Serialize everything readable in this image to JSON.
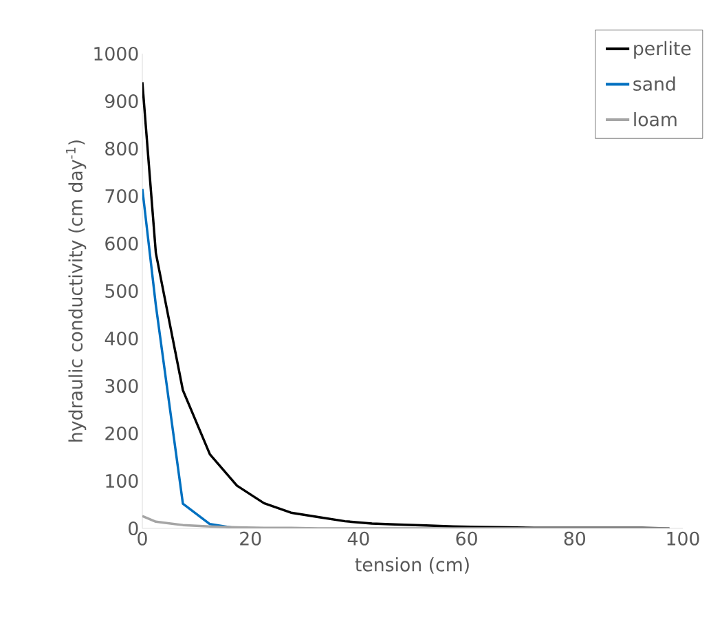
{
  "chart_data": {
    "type": "line",
    "xlabel": "tension (cm)",
    "ylabel": "hydraulic conductivity (cm day$^{-1}$)",
    "x": [
      0,
      2.5,
      7.5,
      12.5,
      17.5,
      22.5,
      27.5,
      32.5,
      37.5,
      42.5,
      47.5,
      52.5,
      57.5,
      62.5,
      67.5,
      72.5,
      77.5,
      82.5,
      87.5,
      92.5,
      97.5
    ],
    "series": [
      {
        "name": "perlite",
        "color": "#000000",
        "values": [
          940,
          580,
          291,
          156,
          90,
          53,
          33,
          24,
          15,
          10,
          8,
          6,
          4,
          3,
          2,
          1,
          1,
          1,
          1,
          1,
          0
        ]
      },
      {
        "name": "sand",
        "color": "#0070c0",
        "values": [
          715,
          470,
          52,
          9,
          0,
          null,
          null,
          null,
          null,
          null,
          null,
          null,
          null,
          null,
          null,
          null,
          null,
          null,
          null,
          null,
          null
        ]
      },
      {
        "name": "loam",
        "color": "#a5a5a5",
        "values": [
          26,
          14,
          7,
          4,
          2,
          1,
          1,
          0,
          0,
          0,
          0,
          0,
          0,
          0,
          0,
          0,
          0,
          0,
          0,
          0,
          0
        ]
      }
    ],
    "xlim": [
      0,
      100
    ],
    "ylim": [
      0,
      1000
    ],
    "xticks": [
      0,
      20,
      40,
      60,
      80,
      100
    ],
    "yticks": [
      0,
      100,
      200,
      300,
      400,
      500,
      600,
      700,
      800,
      900,
      1000
    ],
    "grid": false,
    "legend": "top right",
    "marker": "none",
    "line_style": "solid"
  }
}
